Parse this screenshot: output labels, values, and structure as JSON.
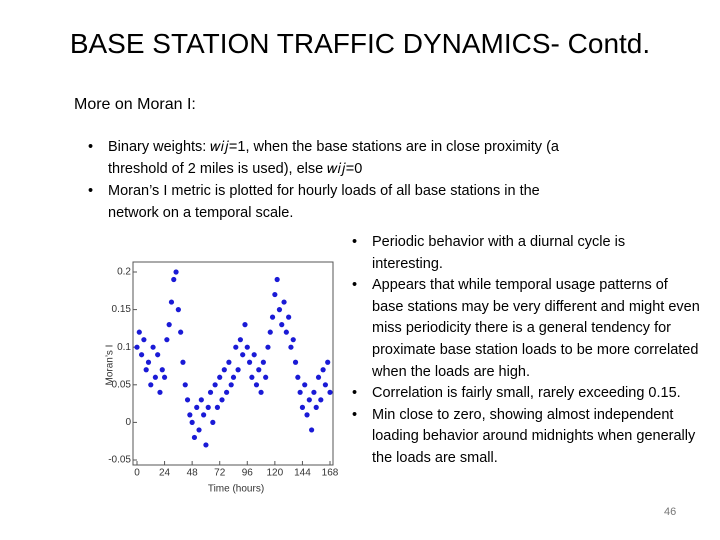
{
  "title": "BASE STATION TRAFFIC DYNAMICS- Contd.",
  "subtitle": "More on Moran I:",
  "top_bullets": [
    "Binary weights: 𝑤𝑖𝑗=1, when the base stations are in close proximity (a threshold of 2 miles is used), else 𝑤𝑖𝑗=0",
    "Moran’s I metric is plotted for hourly loads of all base stations in the network on a temporal scale."
  ],
  "right_bullets": [
    "Periodic behavior with a diurnal cycle is interesting.",
    "Appears that while temporal usage patterns of base stations may be very different and might even miss periodicity there is a general tendency for proximate base station loads to be more correlated when the loads are high.",
    "Correlation is fairly small, rarely exceeding 0.15.",
    "Min close to zero, showing almost independent loading behavior around midnights when generally the loads are small."
  ],
  "page_number": "46",
  "chart_data": {
    "type": "scatter",
    "x_label": "Time (hours)",
    "y_label": "Moran’s I",
    "color": "#1a1ad6",
    "xlim": [
      0,
      168
    ],
    "xticks": [
      0,
      24,
      48,
      72,
      96,
      120,
      144,
      168
    ],
    "ylim": [
      -0.05,
      0.2
    ],
    "yticks": [
      -0.05,
      0,
      0.05,
      0.1,
      0.15,
      0.2
    ],
    "x": [
      0,
      2,
      4,
      6,
      8,
      10,
      12,
      14,
      16,
      18,
      20,
      22,
      24,
      26,
      28,
      30,
      32,
      34,
      36,
      38,
      40,
      42,
      44,
      46,
      48,
      50,
      52,
      54,
      56,
      58,
      60,
      62,
      64,
      66,
      68,
      70,
      72,
      74,
      76,
      78,
      80,
      82,
      84,
      86,
      88,
      90,
      92,
      94,
      96,
      98,
      100,
      102,
      104,
      106,
      108,
      110,
      112,
      114,
      116,
      118,
      120,
      122,
      124,
      126,
      128,
      130,
      132,
      134,
      136,
      138,
      140,
      142,
      144,
      146,
      148,
      150,
      152,
      154,
      156,
      158,
      160,
      162,
      164,
      166,
      168
    ],
    "y": [
      0.1,
      0.12,
      0.09,
      0.11,
      0.07,
      0.08,
      0.05,
      0.1,
      0.06,
      0.09,
      0.04,
      0.07,
      0.06,
      0.11,
      0.13,
      0.16,
      0.19,
      0.2,
      0.15,
      0.12,
      0.08,
      0.05,
      0.03,
      0.01,
      0,
      -0.02,
      0.02,
      -0.01,
      0.03,
      0.01,
      -0.03,
      0.02,
      0.04,
      0,
      0.05,
      0.02,
      0.06,
      0.03,
      0.07,
      0.04,
      0.08,
      0.05,
      0.06,
      0.1,
      0.07,
      0.11,
      0.09,
      0.13,
      0.1,
      0.08,
      0.06,
      0.09,
      0.05,
      0.07,
      0.04,
      0.08,
      0.06,
      0.1,
      0.12,
      0.14,
      0.17,
      0.19,
      0.15,
      0.13,
      0.16,
      0.12,
      0.14,
      0.1,
      0.11,
      0.08,
      0.06,
      0.04,
      0.02,
      0.05,
      0.01,
      0.03,
      -0.01,
      0.04,
      0.02,
      0.06,
      0.03,
      0.07,
      0.05,
      0.08,
      0.04
    ]
  }
}
